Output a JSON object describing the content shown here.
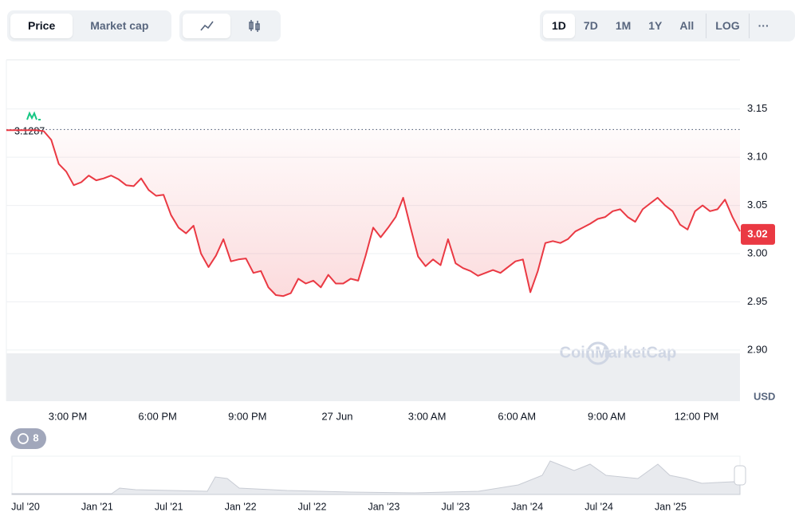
{
  "toolbar": {
    "tabs": [
      "Price",
      "Market cap"
    ],
    "ranges": [
      "1D",
      "7D",
      "1M",
      "1Y",
      "All",
      "LOG"
    ],
    "more": "···"
  },
  "history_badge": "8",
  "watermark": "CoinMarketCap",
  "navigator_labels": [
    "Jul '20",
    "Jan '21",
    "Jul '21",
    "Jan '22",
    "Jul '22",
    "Jan '23",
    "Jul '23",
    "Jan '24",
    "Jul '24",
    "Jan '25"
  ],
  "chart_data": {
    "type": "line",
    "y_axis_label": "USD",
    "reference_value": 3.1287,
    "current_value": 3.02,
    "xlim": [
      0,
      98
    ],
    "xticks": [
      {
        "value": 8.2,
        "label": "3:00 PM"
      },
      {
        "value": 20.2,
        "label": "6:00 PM"
      },
      {
        "value": 32.2,
        "label": "9:00 PM"
      },
      {
        "value": 44.2,
        "label": "27 Jun"
      },
      {
        "value": 56.2,
        "label": "3:00 AM"
      },
      {
        "value": 68.2,
        "label": "6:00 AM"
      },
      {
        "value": 80.2,
        "label": "9:00 AM"
      },
      {
        "value": 92.2,
        "label": "12:00 PM"
      }
    ],
    "ylim": [
      2.847,
      3.201
    ],
    "yticks": [
      {
        "value": 2.9,
        "label": "2.90"
      },
      2.95,
      {
        "value": 3.0,
        "label": "3.00"
      },
      3.05,
      {
        "value": 3.1,
        "label": "3.10"
      },
      3.15
    ],
    "grid": true,
    "series": [
      {
        "color": "#ea3943",
        "values": [
          3.128,
          3.128,
          3.128,
          3.128,
          3.128,
          3.127,
          3.118,
          3.093,
          3.085,
          3.071,
          3.074,
          3.081,
          3.076,
          3.078,
          3.081,
          3.077,
          3.071,
          3.07,
          3.078,
          3.066,
          3.06,
          3.061,
          3.04,
          3.027,
          3.021,
          3.029,
          3.0,
          2.986,
          2.998,
          3.015,
          2.992,
          2.994,
          2.995,
          2.98,
          2.982,
          2.965,
          2.957,
          2.956,
          2.959,
          2.974,
          2.969,
          2.972,
          2.965,
          2.978,
          2.969,
          2.969,
          2.974,
          2.972,
          2.998,
          3.027,
          3.017,
          3.027,
          3.038,
          3.058,
          3.027,
          2.997,
          2.987,
          2.994,
          2.988,
          3.015,
          2.99,
          2.985,
          2.982,
          2.977,
          2.98,
          2.983,
          2.98,
          2.986,
          2.992,
          2.994,
          2.96,
          2.982,
          3.011,
          3.013,
          3.011,
          3.015,
          3.023,
          3.027,
          3.031,
          3.036,
          3.038,
          3.044,
          3.046,
          3.038,
          3.033,
          3.046,
          3.052,
          3.058,
          3.05,
          3.044,
          3.03,
          3.025,
          3.044,
          3.05,
          3.044,
          3.046,
          3.056,
          3.038,
          3.023
        ]
      }
    ]
  }
}
